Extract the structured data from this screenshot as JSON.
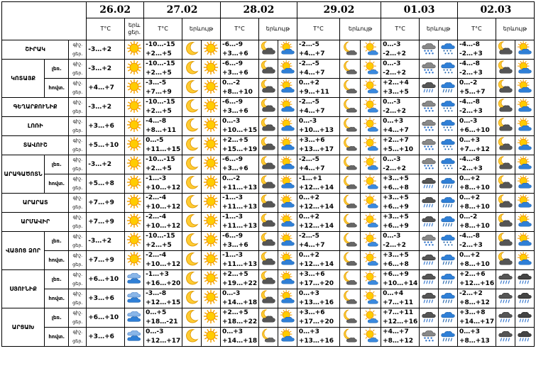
{
  "dates": [
    "26.02",
    "27.02",
    "28.02",
    "29.02",
    "01.03",
    "02.03"
  ],
  "headers": {
    "temp": "T°C",
    "phenom_full": "երևույթ",
    "phenom_short": "երև"
  },
  "day_label": "ցեր.",
  "day_label_short": "ցեր.",
  "night_label": "գիշ.",
  "rows": [
    {
      "region": "ՇԻՐԱԿ",
      "sub": "",
      "day1": {
        "n": "-3…+2",
        "ic": "sun"
      },
      "days": [
        {
          "n": "-10…-15",
          "d": "+2…+5",
          "ni": "moon",
          "di": "sun"
        },
        {
          "n": "-6…-9",
          "d": "+3…+6",
          "ni": "cloud-moon",
          "di": "sun-cloud"
        },
        {
          "n": "-2…-5",
          "d": "+4…+7",
          "ni": "moon-cloud-small",
          "di": "sun-cloud-small"
        },
        {
          "n": "0…-3",
          "d": "-2…+2",
          "ni": "snow",
          "di": "snow-blue"
        },
        {
          "n": "-4…-8",
          "d": "-2…+3",
          "ni": "cloud-moon",
          "di": "sun-cloud"
        }
      ]
    },
    {
      "region": "ԿՈՏԱՅՔ",
      "sub": "լեռ.",
      "day1": {
        "n": "-3…+2",
        "ic": "sun"
      },
      "days": [
        {
          "n": "-10…-15",
          "d": "+2…+5",
          "ni": "moon",
          "di": "sun"
        },
        {
          "n": "-6…-9",
          "d": "+3…+6",
          "ni": "cloud-moon",
          "di": "sun-cloud"
        },
        {
          "n": "-2…-5",
          "d": "+4…+7",
          "ni": "moon-cloud-small",
          "di": "sun-cloud-small"
        },
        {
          "n": "0…-3",
          "d": "-2…+2",
          "ni": "snow",
          "di": "snow-blue"
        },
        {
          "n": "-4…-8",
          "d": "-2…+3",
          "ni": "cloud-moon",
          "di": "sun-cloud"
        }
      ]
    },
    {
      "region": "",
      "sub": "հովտ.",
      "day1": {
        "n": "+4…+7",
        "ic": "sun"
      },
      "days": [
        {
          "n": "-3…-5",
          "d": "+7…+9",
          "ni": "moon",
          "di": "sun"
        },
        {
          "n": "0…-2",
          "d": "+8…+10",
          "ni": "cloud-moon",
          "di": "sun-cloud"
        },
        {
          "n": "0…+2",
          "d": "+9…+11",
          "ni": "moon-cloud-small",
          "di": "sun-cloud-small"
        },
        {
          "n": "+2…+4",
          "d": "+3…+5",
          "ni": "rain",
          "di": "rain-blue"
        },
        {
          "n": "0…-2",
          "d": "+5…+7",
          "ni": "cloud-moon",
          "di": "sun-cloud"
        }
      ]
    },
    {
      "region": "ԳԵՂԱՐՔՈՒՆԻՔ",
      "sub": "",
      "day1": {
        "n": "-3…+2",
        "ic": "sun"
      },
      "days": [
        {
          "n": "-10…-15",
          "d": "+2…+5",
          "ni": "moon",
          "di": "sun"
        },
        {
          "n": "-6…-9",
          "d": "+3…+6",
          "ni": "cloud-moon",
          "di": "sun-cloud"
        },
        {
          "n": "-2…-5",
          "d": "+4…+7",
          "ni": "moon-cloud-small",
          "di": "sun-cloud-small"
        },
        {
          "n": "0…-3",
          "d": "-2…+2",
          "ni": "snow",
          "di": "snow-blue"
        },
        {
          "n": "-4…-8",
          "d": "-2…+3",
          "ni": "cloud-moon",
          "di": "sun-cloud"
        }
      ]
    },
    {
      "region": "ԼՈՌԻ",
      "sub": "",
      "day1": {
        "n": "+3…+6",
        "ic": "sun"
      },
      "days": [
        {
          "n": "-4…-8",
          "d": "+8…+11",
          "ni": "moon",
          "di": "sun"
        },
        {
          "n": "0…-3",
          "d": "+10…+15",
          "ni": "cloud-moon",
          "di": "sun-cloud"
        },
        {
          "n": "0…-3",
          "d": "+10…+13",
          "ni": "moon-cloud-small",
          "di": "sun-cloud-small"
        },
        {
          "n": "0…+3",
          "d": "+4…+7",
          "ni": "snow",
          "di": "snow-blue"
        },
        {
          "n": "0…-3",
          "d": "+6…+10",
          "ni": "cloud-moon",
          "di": "sun-cloud"
        }
      ]
    },
    {
      "region": "ՏԱՎՈՒՇ",
      "sub": "",
      "day1": {
        "n": "+5…+10",
        "ic": "sun"
      },
      "days": [
        {
          "n": "0…-5",
          "d": "+11…+15",
          "ni": "moon",
          "di": "sun"
        },
        {
          "n": "+2…+5",
          "d": "+15…+19",
          "ni": "cloud-moon",
          "di": "sun-cloud"
        },
        {
          "n": "+3…+6",
          "d": "+13…+17",
          "ni": "moon-cloud-small",
          "di": "sun-cloud-small"
        },
        {
          "n": "+2…+7",
          "d": "+5…+10",
          "ni": "snow",
          "di": "snow-blue"
        },
        {
          "n": "0…+3",
          "d": "+7…+12",
          "ni": "cloud-moon",
          "di": "sun-cloud"
        }
      ]
    },
    {
      "region": "ԱՐԱԳԱԾՈՏՆ",
      "sub": "լեռ.",
      "day1": {
        "n": "-3…+2",
        "ic": "sun"
      },
      "days": [
        {
          "n": "-10…-15",
          "d": "+2…+5",
          "ni": "moon",
          "di": "sun"
        },
        {
          "n": "-6…-9",
          "d": "+3…+6",
          "ni": "cloud-moon",
          "di": "sun-cloud"
        },
        {
          "n": "-2…-5",
          "d": "+4…+7",
          "ni": "moon-cloud-small",
          "di": "sun-cloud-small"
        },
        {
          "n": "0…-3",
          "d": "-2…+2",
          "ni": "snow",
          "di": "snow-blue"
        },
        {
          "n": "-4…-8",
          "d": "-2…+3",
          "ni": "cloud-moon",
          "di": "sun-cloud"
        }
      ]
    },
    {
      "region": "",
      "sub": "հովտ.",
      "day1": {
        "n": "+5…+8",
        "ic": "sun"
      },
      "days": [
        {
          "n": "-1…-3",
          "d": "+10…+12",
          "ni": "moon",
          "di": "sun"
        },
        {
          "n": "0…-2",
          "d": "+11…+13",
          "ni": "cloud-moon",
          "di": "sun-cloud"
        },
        {
          "n": "-1…+1",
          "d": "+12…+14",
          "ni": "moon-cloud-small",
          "di": "sun-cloud-small"
        },
        {
          "n": "+3…+5",
          "d": "+6…+8",
          "ni": "rain",
          "di": "rain-blue"
        },
        {
          "n": "0…+2",
          "d": "+8…+10",
          "ni": "cloud-moon",
          "di": "sun-cloud"
        }
      ]
    },
    {
      "region": "ԱՐԱՐԱՏ",
      "sub": "",
      "day1": {
        "n": "+7…+9",
        "ic": "sun"
      },
      "days": [
        {
          "n": "-2…-4",
          "d": "+10…+12",
          "ni": "moon",
          "di": "sun"
        },
        {
          "n": "-1…-3",
          "d": "+11…+13",
          "ni": "cloud-moon",
          "di": "sun-cloud"
        },
        {
          "n": "0…+2",
          "d": "+12…+14",
          "ni": "moon-cloud-small",
          "di": "sun-cloud-small"
        },
        {
          "n": "+3…+5",
          "d": "+6…+9",
          "ni": "rain",
          "di": "rain-blue"
        },
        {
          "n": "0…+2",
          "d": "+8…+10",
          "ni": "cloud-moon",
          "di": "sun-cloud"
        }
      ]
    },
    {
      "region": "ԱՐՄԱՎԻՐ",
      "sub": "",
      "day1": {
        "n": "+7…+9",
        "ic": "sun"
      },
      "days": [
        {
          "n": "-2…-4",
          "d": "+10…+12",
          "ni": "moon",
          "di": "sun"
        },
        {
          "n": "-1…-3",
          "d": "+11…+13",
          "ni": "cloud-moon",
          "di": "sun-cloud"
        },
        {
          "n": "0…+2",
          "d": "+12…+14",
          "ni": "moon-cloud-small",
          "di": "sun-cloud-small"
        },
        {
          "n": "+3…+5",
          "d": "+6…+9",
          "ni": "rain",
          "di": "rain-blue"
        },
        {
          "n": "0…-2",
          "d": "+8…+10",
          "ni": "cloud-moon",
          "di": "sun-cloud"
        }
      ]
    },
    {
      "region": "ՎԱՅՈՑ ՁՈՐ",
      "sub": "լեռ.",
      "day1": {
        "n": "-3…+2",
        "ic": "sun"
      },
      "days": [
        {
          "n": "-10…-15",
          "d": "+2…+5",
          "ni": "moon",
          "di": "sun"
        },
        {
          "n": "-6…-9",
          "d": "+3…+6",
          "ni": "cloud-moon",
          "di": "sun-cloud"
        },
        {
          "n": "-2…-5",
          "d": "+4…+7",
          "ni": "moon-cloud-small",
          "di": "sun-cloud-small"
        },
        {
          "n": "0…-3",
          "d": "-2…+2",
          "ni": "snow",
          "di": "snow-blue"
        },
        {
          "n": "-4…-8",
          "d": "-2…+3",
          "ni": "cloud-moon",
          "di": "sun-cloud"
        }
      ]
    },
    {
      "region": "",
      "sub": "հովտ.",
      "day1": {
        "n": "+7…+9",
        "ic": "sun"
      },
      "days": [
        {
          "n": "-2…-4",
          "d": "+10…+12",
          "ni": "moon",
          "di": "sun"
        },
        {
          "n": "-1…-3",
          "d": "+11…+13",
          "ni": "cloud-moon",
          "di": "sun-cloud"
        },
        {
          "n": "0…+2",
          "d": "+12…+14",
          "ni": "moon-cloud-small",
          "di": "sun-cloud-small"
        },
        {
          "n": "+3…+5",
          "d": "+6…+8",
          "ni": "rain",
          "di": "rain-blue"
        },
        {
          "n": "0…+2",
          "d": "+8…+10",
          "ni": "cloud-moon",
          "di": "sun-cloud"
        }
      ]
    },
    {
      "region": "ՍՅՈՒՆԻՔ",
      "sub": "լեռ.",
      "day1": {
        "n": "+6…+10",
        "ic": "cloud-blue"
      },
      "days": [
        {
          "n": "-1…+3",
          "d": "+16…+20",
          "ni": "moon",
          "di": "sun"
        },
        {
          "n": "+2…+5",
          "d": "+19…+22",
          "ni": "cloud-moon",
          "di": "sun-cloud"
        },
        {
          "n": "+3…+6",
          "d": "+17…+20",
          "ni": "moon-cloud-small",
          "di": "sun-cloud-small"
        },
        {
          "n": "+6…+9",
          "d": "+10…+14",
          "ni": "rain",
          "di": "rain-blue"
        },
        {
          "n": "+2…+6",
          "d": "+12…+16",
          "ni": "rain",
          "di": "rain-dark"
        }
      ]
    },
    {
      "region": "",
      "sub": "հովտ.",
      "day1": {
        "n": "+3…+6",
        "ic": "cloud-blue"
      },
      "days": [
        {
          "n": "-3…-8",
          "d": "+12…+15",
          "ni": "moon",
          "di": "sun"
        },
        {
          "n": "0…-3",
          "d": "+14…+18",
          "ni": "cloud-moon",
          "di": "sun-cloud"
        },
        {
          "n": "0…+3",
          "d": "+13…+16",
          "ni": "moon-cloud-small",
          "di": "sun-cloud-small"
        },
        {
          "n": "0…+4",
          "d": "+7…+11",
          "ni": "rain",
          "di": "rain-blue"
        },
        {
          "n": "-2…+2",
          "d": "+8…+12",
          "ni": "rain",
          "di": "rain-dark"
        }
      ]
    },
    {
      "region": "ԱՐՑԱԽ",
      "sub": "լեռ.",
      "day1": {
        "n": "+6…+10",
        "ic": "cloud-blue"
      },
      "days": [
        {
          "n": "0…+5",
          "d": "+18…-21",
          "ni": "moon",
          "di": "sun"
        },
        {
          "n": "+2…+5",
          "d": "+18…+22",
          "ni": "cloud-moon",
          "di": "sun-cloud"
        },
        {
          "n": "+3…+6",
          "d": "+17…+20",
          "ni": "moon-cloud-small",
          "di": "sun-cloud-small"
        },
        {
          "n": "+7…+11",
          "d": "+12…+16",
          "ni": "rain",
          "di": "rain-blue"
        },
        {
          "n": "+3…+8",
          "d": "+14…+17",
          "ni": "rain",
          "di": "rain-dark"
        }
      ]
    },
    {
      "region": "",
      "sub": "հովտ.",
      "day1": {
        "n": "+3…+6",
        "ic": "cloud-blue"
      },
      "days": [
        {
          "n": "0…-3",
          "d": "+12…+17",
          "ni": "moon",
          "di": "sun"
        },
        {
          "n": "0…+3",
          "d": "+14…+18",
          "ni": "moon-cloud-small",
          "di": "sun-cloud"
        },
        {
          "n": "0…+3",
          "d": "+13…+16",
          "ni": "moon-cloud-small",
          "di": "sun-cloud-small"
        },
        {
          "n": "+4…+7",
          "d": "+8…+12",
          "ni": "snow",
          "di": "rain-blue"
        },
        {
          "n": "0…+3",
          "d": "+8…+13",
          "ni": "rain",
          "di": "rain-dark"
        }
      ]
    }
  ]
}
